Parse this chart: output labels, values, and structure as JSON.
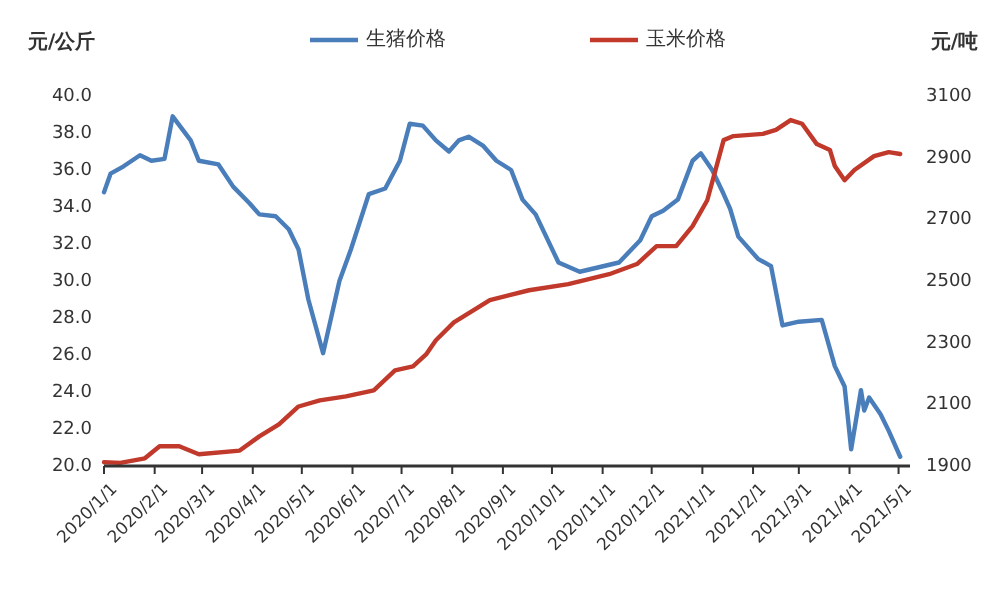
{
  "chart_data": {
    "type": "line",
    "ylabel": "元/公斤",
    "y2label": "元/吨",
    "legend": "top",
    "grid": false,
    "marker": "none",
    "line_style": "solid",
    "xlim": [
      "2020-01-01",
      "2021-05-08"
    ],
    "xticks": [
      {
        "value": "2020-01-01",
        "label": "2020/1/1"
      },
      {
        "value": "2020-02-01",
        "label": "2020/2/1"
      },
      {
        "value": "2020-03-01",
        "label": "2020/3/1"
      },
      {
        "value": "2020-04-01",
        "label": "2020/4/1"
      },
      {
        "value": "2020-05-01",
        "label": "2020/5/1"
      },
      {
        "value": "2020-06-01",
        "label": "2020/6/1"
      },
      {
        "value": "2020-07-01",
        "label": "2020/7/1"
      },
      {
        "value": "2020-08-01",
        "label": "2020/8/1"
      },
      {
        "value": "2020-09-01",
        "label": "2020/9/1"
      },
      {
        "value": "2020-10-01",
        "label": "2020/10/1"
      },
      {
        "value": "2020-11-01",
        "label": "2020/11/1"
      },
      {
        "value": "2020-12-01",
        "label": "2020/12/1"
      },
      {
        "value": "2021-01-01",
        "label": "2021/1/1"
      },
      {
        "value": "2021-02-01",
        "label": "2021/2/1"
      },
      {
        "value": "2021-03-01",
        "label": "2021/3/1"
      },
      {
        "value": "2021-04-01",
        "label": "2021/4/1"
      },
      {
        "value": "2021-05-01",
        "label": "2021/5/1"
      }
    ],
    "ylim": [
      20,
      40
    ],
    "yticks": [
      {
        "value": 20,
        "label": "20.0"
      },
      {
        "value": 22,
        "label": "22.0"
      },
      {
        "value": 24,
        "label": "24.0"
      },
      {
        "value": 26,
        "label": "26.0"
      },
      {
        "value": 28,
        "label": "28.0"
      },
      {
        "value": 30,
        "label": "30.0"
      },
      {
        "value": 32,
        "label": "32.0"
      },
      {
        "value": 34,
        "label": "34.0"
      },
      {
        "value": 36,
        "label": "36.0"
      },
      {
        "value": 38,
        "label": "38.0"
      },
      {
        "value": 40,
        "label": "40.0"
      }
    ],
    "y2lim": [
      1900,
      3100
    ],
    "y2ticks": [
      1900,
      2100,
      2300,
      2500,
      2700,
      2900,
      3100
    ],
    "series": [
      {
        "name": "生猪价格",
        "color": "#4a7ebb",
        "x": [
          "2020-01-01",
          "2020-01-05",
          "2020-01-13",
          "2020-01-23",
          "2020-01-30",
          "2020-02-07",
          "2020-02-12",
          "2020-02-23",
          "2020-02-28",
          "2020-03-11",
          "2020-03-20",
          "2020-03-30",
          "2020-04-05",
          "2020-04-15",
          "2020-04-23",
          "2020-04-29",
          "2020-05-05",
          "2020-05-14",
          "2020-05-24",
          "2020-05-31",
          "2020-06-11",
          "2020-06-21",
          "2020-06-30",
          "2020-07-06",
          "2020-07-14",
          "2020-07-22",
          "2020-07-30",
          "2020-08-05",
          "2020-08-11",
          "2020-08-20",
          "2020-08-28",
          "2020-09-06",
          "2020-09-13",
          "2020-09-21",
          "2020-10-05",
          "2020-10-18",
          "2020-11-11",
          "2020-11-24",
          "2020-12-01",
          "2020-12-08",
          "2020-12-17",
          "2020-12-26",
          "2020-12-31",
          "2021-01-07",
          "2021-01-14",
          "2021-01-18",
          "2021-01-23",
          "2021-02-04",
          "2021-02-12",
          "2021-02-19",
          "2021-03-01",
          "2021-03-15",
          "2021-03-23",
          "2021-03-29",
          "2021-04-02",
          "2021-04-08",
          "2021-04-10",
          "2021-04-13",
          "2021-04-20",
          "2021-04-25",
          "2021-05-02"
        ],
        "values": [
          34.8,
          35.8,
          36.2,
          36.8,
          36.5,
          36.6,
          38.9,
          37.6,
          36.5,
          36.3,
          35.1,
          34.2,
          33.6,
          33.5,
          32.8,
          31.7,
          29.0,
          26.1,
          30.0,
          31.7,
          34.7,
          35.0,
          36.5,
          38.5,
          38.4,
          37.6,
          37.0,
          37.6,
          37.8,
          37.3,
          36.5,
          36.0,
          34.4,
          33.6,
          31.0,
          30.5,
          31.0,
          32.2,
          33.5,
          33.8,
          34.4,
          36.5,
          36.9,
          36.0,
          34.7,
          33.9,
          32.4,
          31.2,
          30.8,
          27.6,
          27.8,
          27.9,
          25.4,
          24.3,
          20.9,
          24.1,
          23.0,
          23.7,
          22.8,
          21.9,
          20.5
        ]
      },
      {
        "name": "玉米价格",
        "color": "#c0392b",
        "axis": "y2",
        "x": [
          "2020-01-01",
          "2020-01-11",
          "2020-01-26",
          "2020-02-04",
          "2020-02-16",
          "2020-02-28",
          "2020-03-24",
          "2020-04-05",
          "2020-04-17",
          "2020-04-29",
          "2020-05-12",
          "2020-05-28",
          "2020-06-14",
          "2020-06-27",
          "2020-07-08",
          "2020-07-16",
          "2020-07-22",
          "2020-08-02",
          "2020-08-24",
          "2020-09-17",
          "2020-10-11",
          "2020-11-05",
          "2020-11-22",
          "2020-12-04",
          "2020-12-16",
          "2020-12-26",
          "2021-01-04",
          "2021-01-14",
          "2021-01-20",
          "2021-02-07",
          "2021-02-15",
          "2021-02-24",
          "2021-03-03",
          "2021-03-12",
          "2021-03-20",
          "2021-03-23",
          "2021-03-29",
          "2021-04-04",
          "2021-04-16",
          "2021-04-25",
          "2021-05-02"
        ],
        "values": [
          1912,
          1910,
          1925,
          1964,
          1964,
          1938,
          1950,
          1996,
          2035,
          2093,
          2113,
          2126,
          2145,
          2210,
          2223,
          2262,
          2308,
          2366,
          2438,
          2470,
          2490,
          2522,
          2555,
          2613,
          2613,
          2678,
          2762,
          2957,
          2970,
          2977,
          2990,
          3022,
          3010,
          2944,
          2925,
          2873,
          2827,
          2860,
          2905,
          2918,
          2912
        ]
      }
    ]
  }
}
